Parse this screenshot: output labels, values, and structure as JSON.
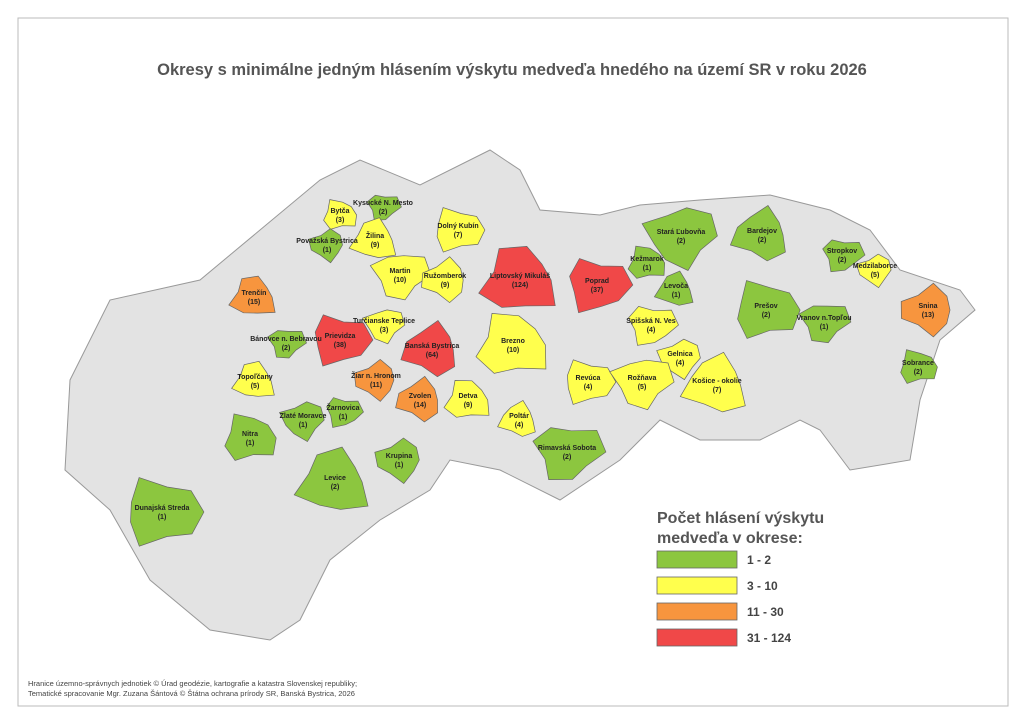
{
  "title": "Okresy s minimálne jedným hlásením výskytu medveďa hnedého na území SR v roku 2026",
  "districts": [
    {
      "name": "Bytča",
      "count": "(3)",
      "color": "#ffff4d"
    },
    {
      "name": "Kysucké N. Mesto",
      "count": "(2)",
      "color": "#8cc63f"
    },
    {
      "name": "Považská Bystrica",
      "count": "(1)",
      "color": "#8cc63f"
    },
    {
      "name": "Žilina",
      "count": "(9)",
      "color": "#ffff4d"
    },
    {
      "name": "Dolný Kubín",
      "count": "(7)",
      "color": "#ffff4d"
    },
    {
      "name": "Martin",
      "count": "(10)",
      "color": "#ffff4d"
    },
    {
      "name": "Ružomberok",
      "count": "(9)",
      "color": "#ffff4d"
    },
    {
      "name": "Liptovský Mikuláš",
      "count": "(124)",
      "color": "#f04848"
    },
    {
      "name": "Poprad",
      "count": "(37)",
      "color": "#f04848"
    },
    {
      "name": "Stará Ľubovňa",
      "count": "(2)",
      "color": "#8cc63f"
    },
    {
      "name": "Bardejov",
      "count": "(2)",
      "color": "#8cc63f"
    },
    {
      "name": "Kežmarok",
      "count": "(1)",
      "color": "#8cc63f"
    },
    {
      "name": "Stropkov",
      "count": "(2)",
      "color": "#8cc63f"
    },
    {
      "name": "Medzilaborce",
      "count": "(5)",
      "color": "#ffff4d"
    },
    {
      "name": "Levoča",
      "count": "(1)",
      "color": "#8cc63f"
    },
    {
      "name": "Prešov",
      "count": "(2)",
      "color": "#8cc63f"
    },
    {
      "name": "Vranov n.Topľou",
      "count": "(1)",
      "color": "#8cc63f"
    },
    {
      "name": "Snina",
      "count": "(13)",
      "color": "#f7953e"
    },
    {
      "name": "Trenčín",
      "count": "(15)",
      "color": "#f7953e"
    },
    {
      "name": "Prievidza",
      "count": "(38)",
      "color": "#f04848"
    },
    {
      "name": "Turčianske Teplice",
      "count": "(3)",
      "color": "#ffff4d"
    },
    {
      "name": "Banská Bystrica",
      "count": "(64)",
      "color": "#f04848"
    },
    {
      "name": "Brezno",
      "count": "(10)",
      "color": "#ffff4d"
    },
    {
      "name": "Spišská N. Ves",
      "count": "(4)",
      "color": "#ffff4d"
    },
    {
      "name": "Gelnica",
      "count": "(4)",
      "color": "#ffff4d"
    },
    {
      "name": "Košice - okolie",
      "count": "(7)",
      "color": "#ffff4d"
    },
    {
      "name": "Sobrance",
      "count": "(2)",
      "color": "#8cc63f"
    },
    {
      "name": "Bánovce n. Bebravou",
      "count": "(2)",
      "color": "#8cc63f"
    },
    {
      "name": "Žiar n. Hronom",
      "count": "(11)",
      "color": "#f7953e"
    },
    {
      "name": "Topoľčany",
      "count": "(5)",
      "color": "#ffff4d"
    },
    {
      "name": "Revúca",
      "count": "(4)",
      "color": "#ffff4d"
    },
    {
      "name": "Rožňava",
      "count": "(5)",
      "color": "#ffff4d"
    },
    {
      "name": "Zvolen",
      "count": "(14)",
      "color": "#f7953e"
    },
    {
      "name": "Detva",
      "count": "(9)",
      "color": "#ffff4d"
    },
    {
      "name": "Žarnovica",
      "count": "(1)",
      "color": "#8cc63f"
    },
    {
      "name": "Zlaté Moravce",
      "count": "(1)",
      "color": "#8cc63f"
    },
    {
      "name": "Poltár",
      "count": "(4)",
      "color": "#ffff4d"
    },
    {
      "name": "Nitra",
      "count": "(1)",
      "color": "#8cc63f"
    },
    {
      "name": "Rimavská Sobota",
      "count": "(2)",
      "color": "#8cc63f"
    },
    {
      "name": "Krupina",
      "count": "(1)",
      "color": "#8cc63f"
    },
    {
      "name": "Levice",
      "count": "(2)",
      "color": "#8cc63f"
    },
    {
      "name": "Dunajská Streda",
      "count": "(1)",
      "color": "#8cc63f"
    }
  ],
  "legend": {
    "title_lines": [
      "Počet hlásení výskytu",
      "medveďa v okrese:"
    ],
    "items": [
      {
        "label": "1 - 2",
        "color": "#8cc63f"
      },
      {
        "label": "3 - 10",
        "color": "#ffff4d"
      },
      {
        "label": "11 - 30",
        "color": "#f7953e"
      },
      {
        "label": "31 - 124",
        "color": "#f04848"
      }
    ]
  },
  "footer": [
    "Hranice územno-správnych jednotiek © Úrad geodézie, kartografie a katastra Slovenskej republiky;",
    "Tematické spracovanie Mgr. Zuzana Šántová © Štátna ochrana prírody SR, Banská Bystrica, 2026"
  ]
}
